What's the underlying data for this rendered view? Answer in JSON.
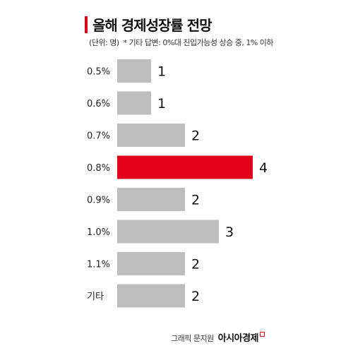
{
  "header": {
    "title": "올해 경제성장률 전망",
    "unit": "(단위: 명)",
    "note": "* 기타 답변: 0%대 진입가능성 상승 중, 1% 이하"
  },
  "footer": {
    "source": "그래픽 문지원",
    "brand": "아시아경제"
  },
  "colors": {
    "accent": "#e0001b",
    "bar": "#bdbdbd"
  },
  "chart_data": {
    "type": "bar",
    "orientation": "horizontal",
    "categories": [
      "0.5%",
      "0.6%",
      "0.7%",
      "0.8%",
      "0.9%",
      "1.0%",
      "1.1%",
      "기타"
    ],
    "values": [
      1,
      1,
      2,
      4,
      2,
      3,
      2,
      2
    ],
    "highlight_index": 3,
    "xlim": [
      0,
      4
    ],
    "grid": false,
    "data_labels": true
  }
}
